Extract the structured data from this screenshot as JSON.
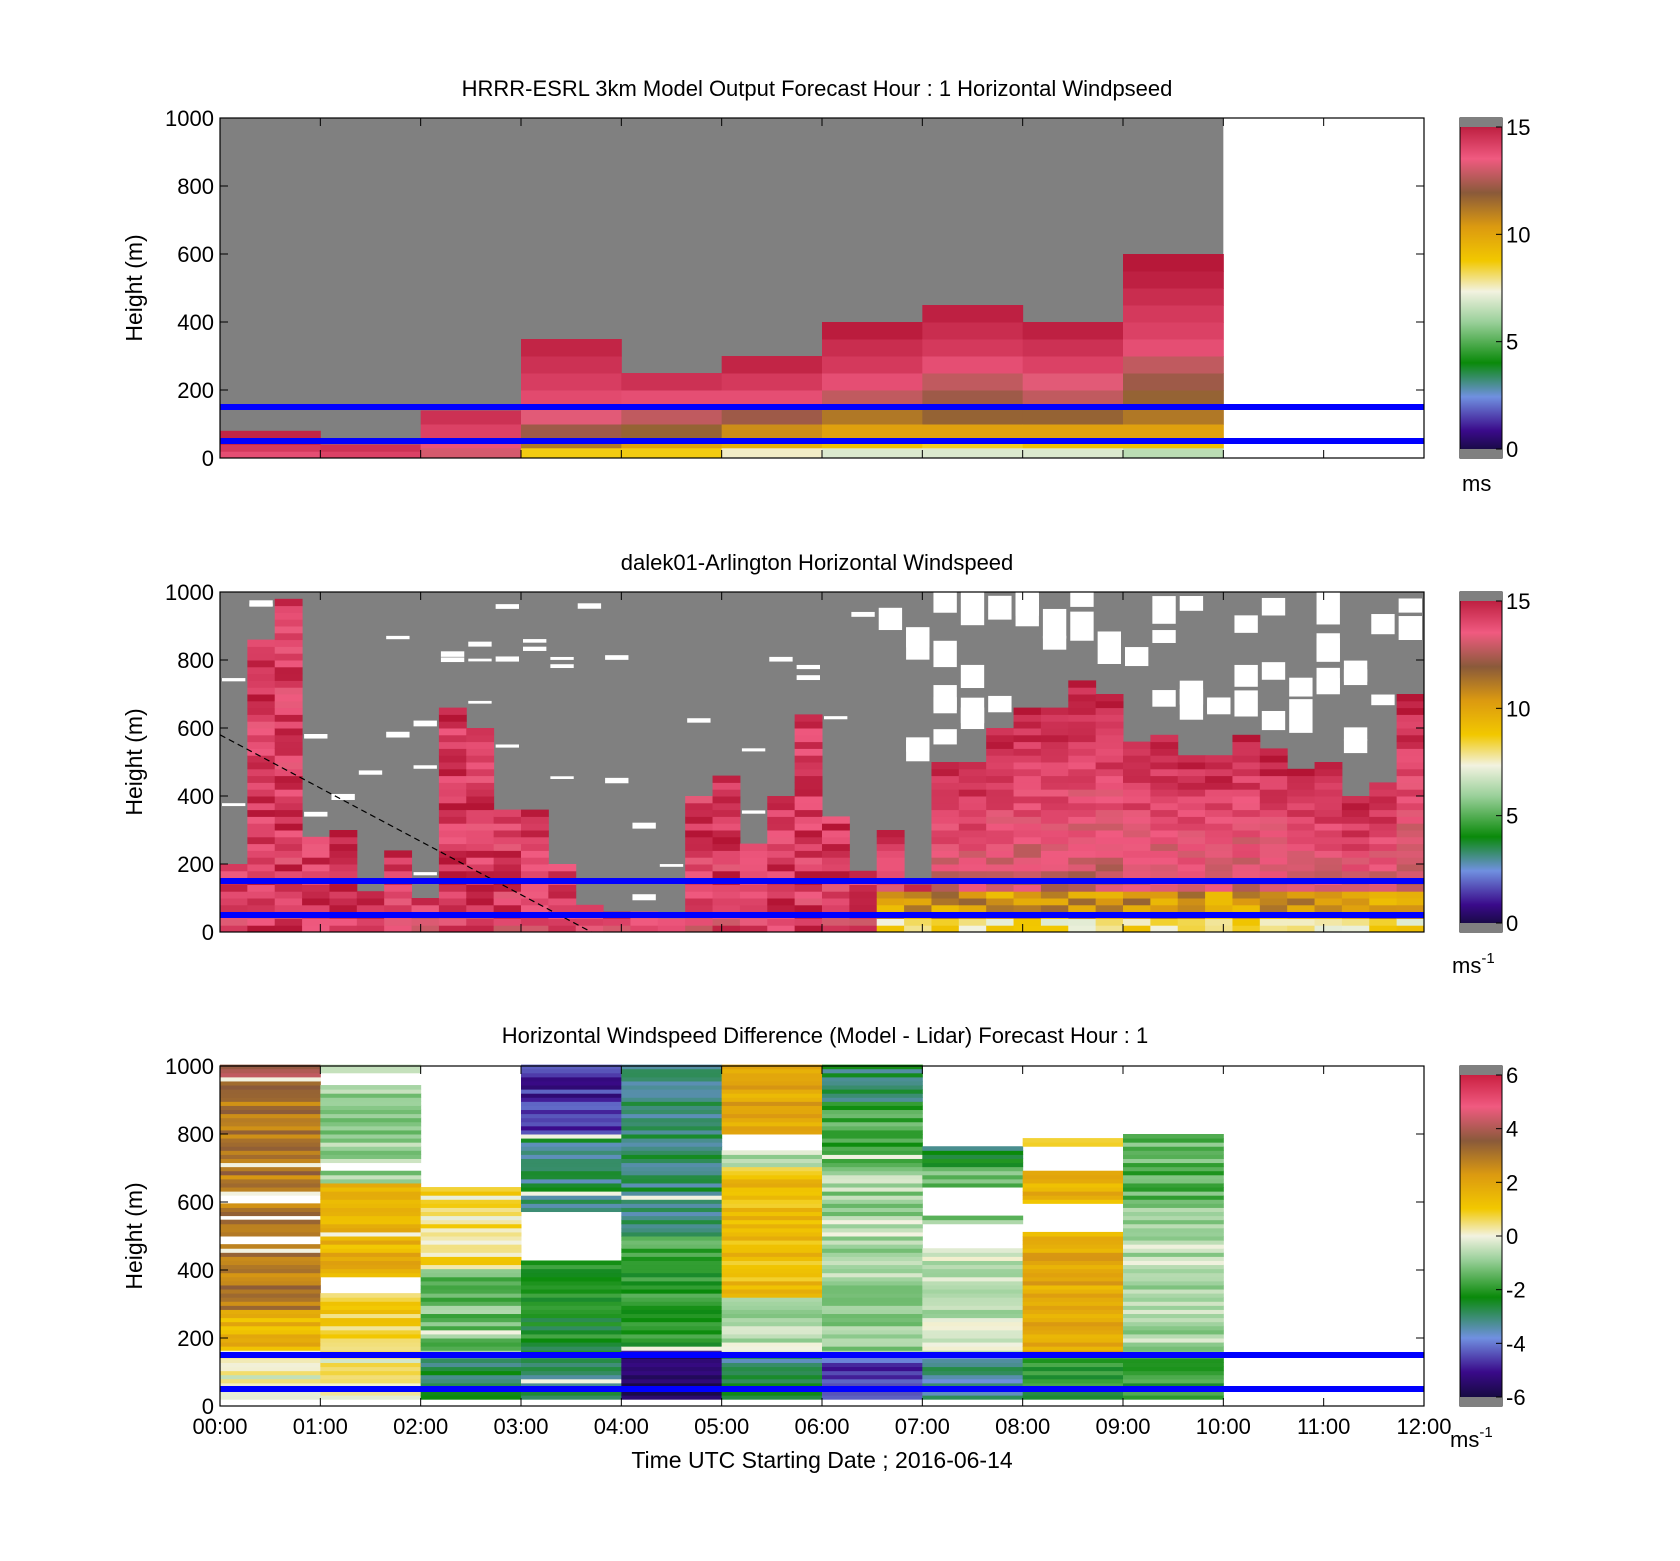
{
  "figure": {
    "xlabel": "Time UTC  Starting Date ; 2016-06-14",
    "x_ticks": [
      "00:00",
      "01:00",
      "02:00",
      "03:00",
      "04:00",
      "05:00",
      "06:00",
      "07:00",
      "08:00",
      "09:00",
      "10:00",
      "11:00",
      "12:00"
    ],
    "y_ticks": [
      "0",
      "200",
      "400",
      "600",
      "800",
      "1000"
    ],
    "ylabel": "Height (m)",
    "reference_lines_m": [
      50,
      150
    ],
    "reference_line_color": "#0000ff"
  },
  "chart_data": [
    {
      "type": "heatmap",
      "title": "HRRR-ESRL 3km Model Output   Forecast Hour : 1 Horizontal Windpseed",
      "ylabel": "Height (m)",
      "xlim_hours": [
        0,
        12
      ],
      "ylim": [
        0,
        1000
      ],
      "background_color": "#808080",
      "no_data_after_hour": 10,
      "colorbar": {
        "ticks": [
          "0",
          "5",
          "10",
          "15"
        ],
        "min": 0,
        "max": 15,
        "unit": "ms"
      },
      "columns": [
        {
          "x": 0,
          "tops": [
            20,
            40,
            80
          ],
          "values": [
            13.5,
            14,
            14.5
          ]
        },
        {
          "x": 1,
          "tops": [
            20,
            40
          ],
          "values": [
            13.8,
            14.2
          ]
        },
        {
          "x": 2,
          "tops": [
            30,
            60,
            100,
            140
          ],
          "values": [
            12.8,
            13.4,
            13.8,
            14.2
          ]
        },
        {
          "x": 3,
          "tops": [
            30,
            60,
            100,
            150,
            200,
            250,
            300,
            350
          ],
          "values": [
            8.6,
            11,
            12,
            13,
            13.6,
            13.9,
            14.2,
            14.5
          ]
        },
        {
          "x": 4,
          "tops": [
            30,
            60,
            100,
            150,
            200,
            250
          ],
          "values": [
            8.6,
            10,
            11.5,
            12.5,
            13.5,
            14.2
          ]
        },
        {
          "x": 5,
          "tops": [
            30,
            60,
            100,
            150,
            200,
            250,
            300
          ],
          "values": [
            7.5,
            9.5,
            10.5,
            12,
            13.5,
            14,
            14.5
          ]
        },
        {
          "x": 6,
          "tops": [
            30,
            60,
            100,
            150,
            200,
            250,
            300,
            350,
            400
          ],
          "values": [
            7,
            9,
            10,
            11,
            12.5,
            13.5,
            14,
            14.3,
            14.7
          ]
        },
        {
          "x": 7,
          "tops": [
            30,
            60,
            100,
            150,
            200,
            250,
            300,
            350,
            400,
            450
          ],
          "values": [
            7,
            8.5,
            10,
            11.5,
            12,
            12.5,
            13.5,
            14,
            14.3,
            14.6
          ]
        },
        {
          "x": 8,
          "tops": [
            30,
            60,
            100,
            150,
            200,
            250,
            300,
            350,
            400
          ],
          "values": [
            7,
            9,
            10,
            11.5,
            12.5,
            13,
            13.8,
            14.2,
            14.6
          ]
        },
        {
          "x": 9,
          "tops": [
            30,
            60,
            100,
            150,
            200,
            250,
            300,
            350,
            400,
            450,
            500,
            550,
            600
          ],
          "values": [
            6.5,
            9,
            10,
            11,
            11.5,
            12,
            12.5,
            13.5,
            13.8,
            14,
            14.3,
            14.6,
            14.8
          ]
        }
      ]
    },
    {
      "type": "heatmap",
      "title": "dalek01-Arlington  Horizontal Windspeed",
      "ylabel": "Height (m)",
      "xlim_hours": [
        0,
        12
      ],
      "ylim": [
        0,
        1000
      ],
      "background_color": "#808080",
      "colorbar": {
        "ticks": [
          "0",
          "5",
          "10",
          "15"
        ],
        "min": 0,
        "max": 15,
        "unit": "ms-1"
      },
      "profile_tops_m": [
        200,
        850,
        980,
        280,
        300,
        120,
        240,
        100,
        660,
        600,
        360,
        350,
        200,
        80,
        60,
        50,
        30,
        400,
        450,
        260,
        400,
        640,
        330,
        180,
        300,
        130,
        500,
        490,
        600,
        650,
        660,
        740,
        700,
        560,
        580,
        520,
        520,
        570,
        530,
        470,
        490,
        400,
        430,
        700
      ],
      "strong_wind_start_hour": 6.5,
      "dashed_line": {
        "from": [
          0,
          580
        ],
        "to": [
          3.7,
          0
        ]
      }
    },
    {
      "type": "heatmap",
      "title": "Horizontal Windspeed Difference (Model - Lidar) Forecast Hour : 1",
      "ylabel": "Height (m)",
      "xlim_hours": [
        0,
        12
      ],
      "ylim": [
        0,
        1000
      ],
      "background_color": "#ffffff",
      "colorbar": {
        "ticks": [
          "-6",
          "-4",
          "-2",
          "0",
          "2",
          "4",
          "6"
        ],
        "min": -6,
        "max": 6,
        "unit": "ms-1"
      },
      "columns": [
        {
          "x": 0,
          "top": 1000,
          "gaps": [
            [
              480,
              500
            ],
            [
              545,
              565
            ],
            [
              600,
              625
            ]
          ],
          "bands": [
            {
              "top": 150,
              "value": 0
            },
            {
              "top": 280,
              "value": 1.5
            },
            {
              "top": 900,
              "value": 2.8
            },
            {
              "top": 1000,
              "value": 3.5
            }
          ]
        },
        {
          "x": 1,
          "top": 1000,
          "gaps": [
            [
              330,
              380
            ],
            [
              690,
              720
            ],
            [
              940,
              980
            ]
          ],
          "bands": [
            {
              "top": 150,
              "value": 0.3
            },
            {
              "top": 330,
              "value": 0.8
            },
            {
              "top": 650,
              "value": 1.5
            },
            {
              "top": 1000,
              "value": -0.8
            }
          ]
        },
        {
          "x": 2,
          "top": 640,
          "gaps": [],
          "bands": [
            {
              "top": 150,
              "value": -2.5
            },
            {
              "top": 400,
              "value": -1.2
            },
            {
              "top": 640,
              "value": 0.5
            }
          ]
        },
        {
          "x": 3,
          "top": 1000,
          "gaps": [
            [
              430,
              570
            ]
          ],
          "bands": [
            {
              "top": 150,
              "value": -2.8
            },
            {
              "top": 430,
              "value": -2.2
            },
            {
              "top": 800,
              "value": -2.8
            },
            {
              "top": 1000,
              "value": -4.5
            }
          ]
        },
        {
          "x": 4,
          "top": 1000,
          "gaps": [],
          "bands": [
            {
              "top": 160,
              "value": -5.2
            },
            {
              "top": 500,
              "value": -1.8
            },
            {
              "top": 1000,
              "value": -2.8
            }
          ]
        },
        {
          "x": 5,
          "top": 1000,
          "gaps": [
            [
              750,
              800
            ]
          ],
          "bands": [
            {
              "top": 150,
              "value": -2.8
            },
            {
              "top": 320,
              "value": -0.5
            },
            {
              "top": 700,
              "value": 1.2
            },
            {
              "top": 800,
              "value": -0.6
            },
            {
              "top": 1000,
              "value": 1.8
            }
          ]
        },
        {
          "x": 6,
          "top": 1000,
          "gaps": [],
          "bands": [
            {
              "top": 150,
              "value": -4.2
            },
            {
              "top": 700,
              "value": -0.8
            },
            {
              "top": 900,
              "value": -1.6
            },
            {
              "top": 1000,
              "value": -2.6
            }
          ]
        },
        {
          "x": 7,
          "top": 760,
          "gaps": [
            [
              460,
              540
            ],
            [
              560,
              640
            ]
          ],
          "bands": [
            {
              "top": 150,
              "value": -3
            },
            {
              "top": 460,
              "value": -0.4
            },
            {
              "top": 700,
              "value": -1.2
            },
            {
              "top": 760,
              "value": -2.5
            }
          ]
        },
        {
          "x": 8,
          "top": 780,
          "gaps": [
            [
              510,
              600
            ],
            [
              690,
              760
            ]
          ],
          "bands": [
            {
              "top": 150,
              "value": -2
            },
            {
              "top": 480,
              "value": 1.8
            },
            {
              "top": 690,
              "value": 1.5
            },
            {
              "top": 780,
              "value": 0.3
            }
          ]
        },
        {
          "x": 9,
          "top": 800,
          "gaps": [],
          "bands": [
            {
              "top": 150,
              "value": -2
            },
            {
              "top": 580,
              "value": -0.6
            },
            {
              "top": 800,
              "value": -1.4
            }
          ]
        }
      ]
    }
  ]
}
